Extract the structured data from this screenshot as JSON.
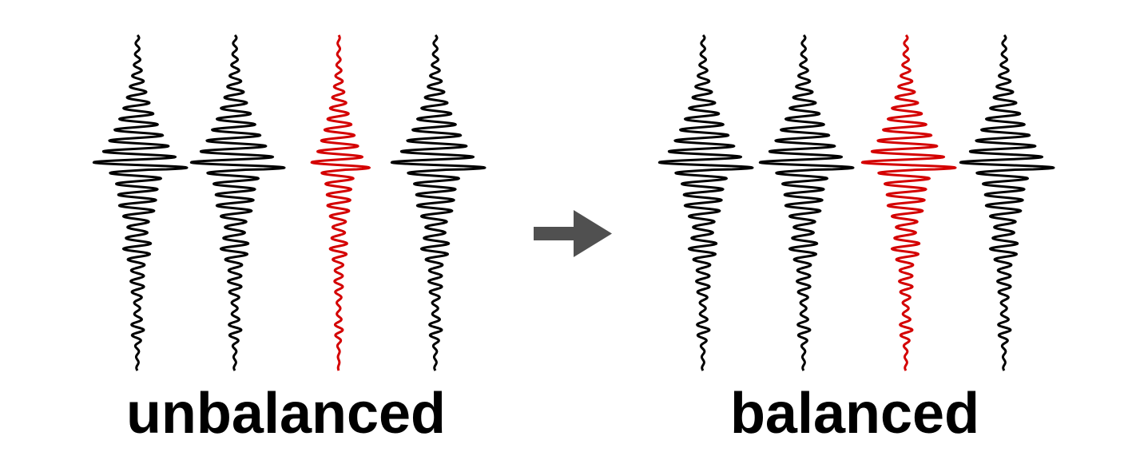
{
  "panels": [
    {
      "label": "unbalanced",
      "traces": [
        {
          "color": "trace_color",
          "amplitude_scale": 1.0
        },
        {
          "color": "trace_color",
          "amplitude_scale": 1.0
        },
        {
          "color": "highlight_color",
          "amplitude_scale": 0.62
        },
        {
          "color": "trace_color",
          "amplitude_scale": 1.0
        }
      ]
    },
    {
      "label": "balanced",
      "traces": [
        {
          "color": "trace_color",
          "amplitude_scale": 1.0
        },
        {
          "color": "trace_color",
          "amplitude_scale": 1.0
        },
        {
          "color": "highlight_color",
          "amplitude_scale": 1.0
        },
        {
          "color": "trace_color",
          "amplitude_scale": 1.0
        }
      ]
    }
  ],
  "colors": {
    "trace_color": "#000000",
    "highlight_color": "#d40000",
    "arrow_color": "#505050"
  },
  "arrow": {
    "icon": "right-arrow-icon"
  }
}
